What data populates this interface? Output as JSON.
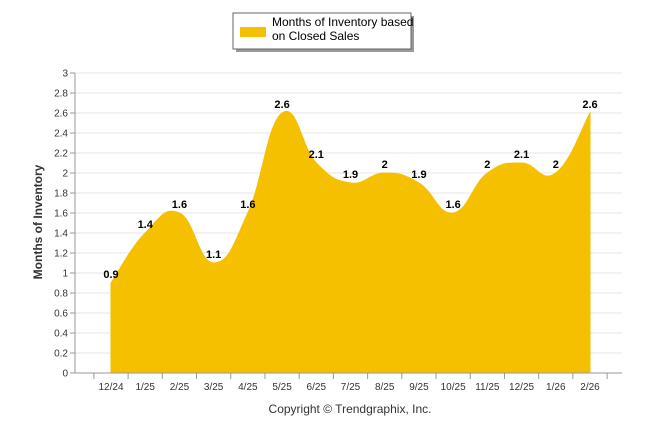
{
  "chart_data": {
    "type": "area",
    "title": "",
    "xlabel": "",
    "ylabel": "Months of Inventory",
    "categories": [
      "12/24",
      "1/25",
      "2/25",
      "3/25",
      "4/25",
      "5/25",
      "6/25",
      "7/25",
      "8/25",
      "9/25",
      "10/25",
      "11/25",
      "12/25",
      "1/26",
      "2/26"
    ],
    "series": [
      {
        "name": "Months of Inventory based on Closed Sales",
        "values": [
          0.9,
          1.4,
          1.6,
          1.1,
          1.6,
          2.6,
          2.1,
          1.9,
          2,
          1.9,
          1.6,
          2,
          2.1,
          2,
          2.6
        ],
        "data_labels": [
          "0.9",
          "1.4",
          "1.6",
          "1.1",
          "1.6",
          "2.6",
          "2.1",
          "1.9",
          "2",
          "1.9",
          "1.6",
          "2",
          "2.1",
          "2",
          "2.6"
        ]
      }
    ],
    "ylim": [
      0,
      3
    ],
    "y_ticks": [
      "0",
      "0.2",
      "0.4",
      "0.6",
      "0.8",
      "1",
      "1.2",
      "1.4",
      "1.6",
      "1.8",
      "2",
      "2.2",
      "2.4",
      "2.6",
      "2.8",
      "3"
    ],
    "grid": true,
    "legend": {
      "placement": "top-center",
      "line1": "Months of Inventory based",
      "line2": "on Closed Sales"
    },
    "fill_color": "#f5c000",
    "copyright": "Copyright © Trendgraphix, Inc."
  }
}
